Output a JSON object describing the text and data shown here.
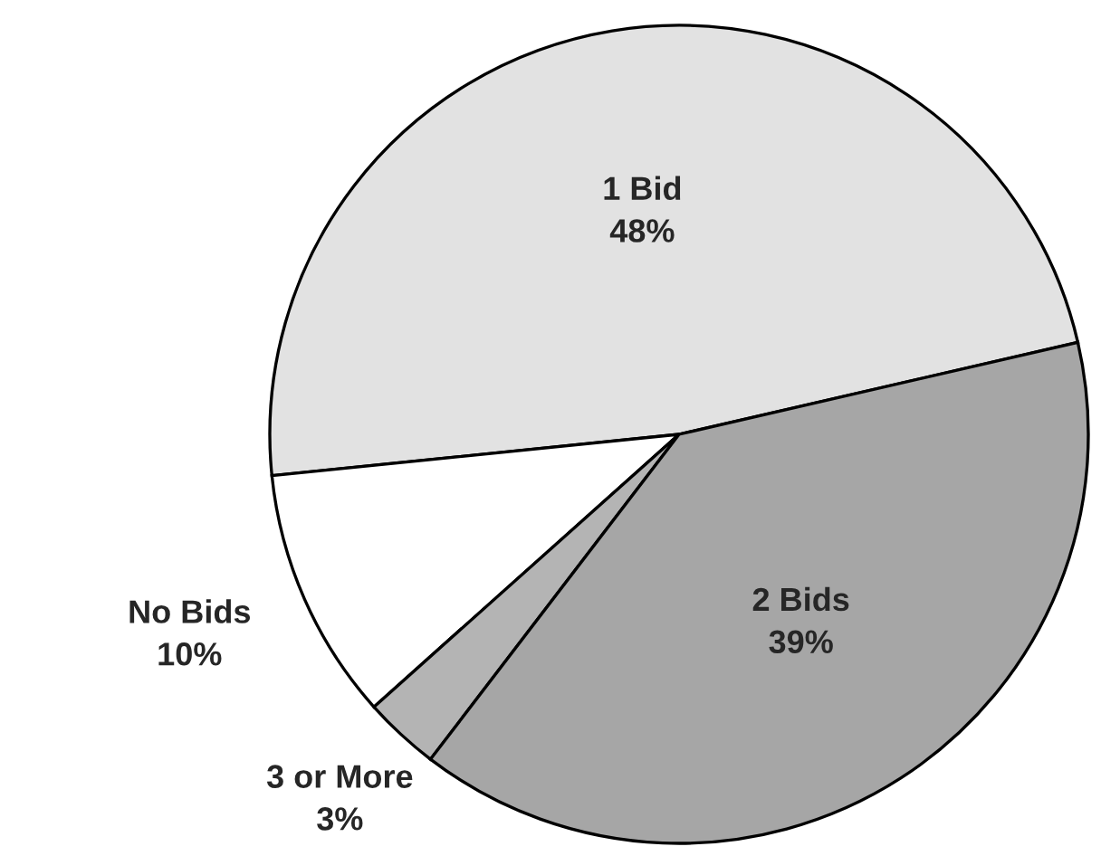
{
  "chart_data": {
    "type": "pie",
    "categories": [
      "1 Bid",
      "No Bids",
      "3 or More",
      "2 Bids"
    ],
    "values": [
      48,
      10,
      3,
      39
    ],
    "colors": [
      "#e2e2e2",
      "#ffffff",
      "#b4b4b4",
      "#a6a6a6"
    ],
    "value_labels": [
      "48%",
      "10%",
      "3%",
      "39%"
    ]
  }
}
